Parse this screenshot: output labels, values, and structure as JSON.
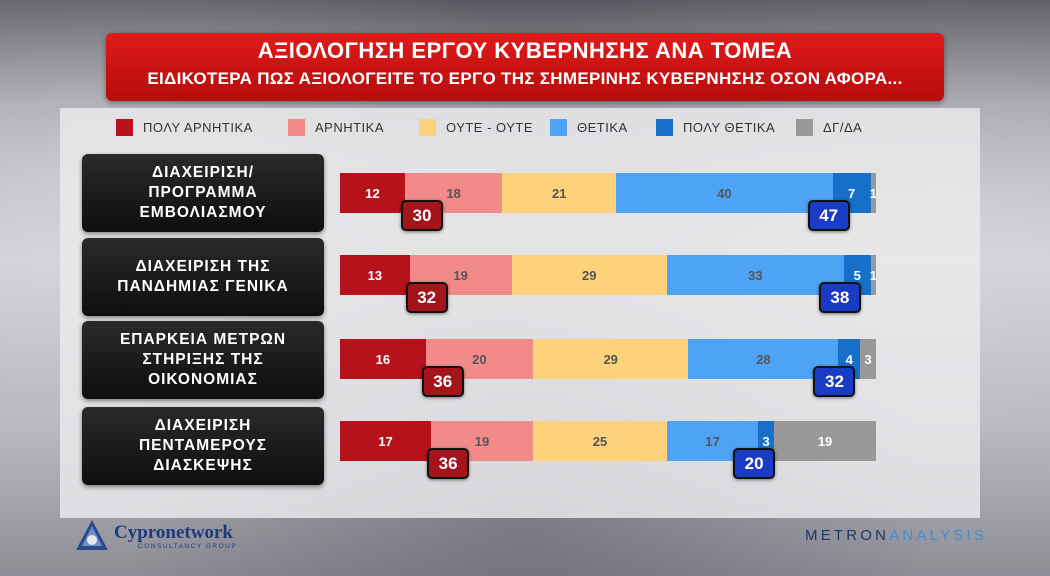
{
  "header": {
    "title": "ΑΞΙΟΛΟΓΗΣΗ ΕΡΓΟΥ ΚΥΒΕΡΝΗΣΗΣ ΑΝΑ ΤΟΜΕΑ",
    "subtitle": "ΕΙΔΙΚΟΤΕΡΑ ΠΩΣ ΑΞΙΟΛΟΓΕΙΤΕ ΤΟ ΕΡΓΟ ΤΗΣ ΣΗΜΕΡΙΝΗΣ ΚΥΒΕΡΝΗΣΗΣ ΟΣΟΝ ΑΦΟΡΑ..."
  },
  "legend": [
    {
      "label": "ΠΟΛΥ ΑΡΝΗΤΙΚΑ",
      "color": "#b5121b"
    },
    {
      "label": "ΑΡΝΗΤΙΚΑ",
      "color": "#f28a8a"
    },
    {
      "label": "ΟΥΤΕ - ΟΥΤΕ",
      "color": "#fdd27a"
    },
    {
      "label": "ΘΕΤΙΚΑ",
      "color": "#4ea3f4"
    },
    {
      "label": "ΠΟΛΥ ΘΕΤΙΚΑ",
      "color": "#1670c9"
    },
    {
      "label": "ΔΓ/ΔΑ",
      "color": "#999999"
    }
  ],
  "chart_data": {
    "type": "bar",
    "orientation": "horizontal-stacked-100",
    "title": "ΑΞΙΟΛΟΓΗΣΗ ΕΡΓΟΥ ΚΥΒΕΡΝΗΣΗΣ ΑΝΑ ΤΟΜΕΑ",
    "subtitle": "ΕΙΔΙΚΟΤΕΡΑ ΠΩΣ ΑΞΙΟΛΟΓΕΙΤΕ ΤΟ ΕΡΓΟ ΤΗΣ ΣΗΜΕΡΙΝΗΣ ΚΥΒΕΡΝΗΣΗΣ ΟΣΟΝ ΑΦΟΡΑ...",
    "categories": [
      "ΔΙΑΧΕΙΡΙΣΗ/\nΠΡΟΓΡΑΜΜΑ\nΕΜΒΟΛΙΑΣΜΟΥ",
      "ΔΙΑΧΕΙΡΙΣΗ ΤΗΣ\nΠΑΝΔΗΜΙΑΣ ΓΕΝΙΚΑ",
      "ΕΠΑΡΚΕΙΑ ΜΕΤΡΩΝ\nΣΤΗΡΙΞΗΣ ΤΗΣ\nΟΙΚΟΝΟΜΙΑΣ",
      "ΔΙΑΧΕΙΡΙΣΗ\nΠΕΝΤΑΜΕΡΟΥΣ\nΔΙΑΣΚΕΨΗΣ"
    ],
    "series": [
      {
        "name": "ΠΟΛΥ ΑΡΝΗΤΙΚΑ",
        "values": [
          12,
          13,
          16,
          17
        ]
      },
      {
        "name": "ΑΡΝΗΤΙΚΑ",
        "values": [
          18,
          19,
          20,
          19
        ]
      },
      {
        "name": "ΟΥΤΕ - ΟΥΤΕ",
        "values": [
          21,
          29,
          29,
          25
        ]
      },
      {
        "name": "ΘΕΤΙΚΑ",
        "values": [
          40,
          33,
          28,
          17
        ]
      },
      {
        "name": "ΠΟΛΥ ΘΕΤΙΚΑ",
        "values": [
          7,
          5,
          4,
          3
        ]
      },
      {
        "name": "ΔΓ/ΔΑ",
        "values": [
          1,
          1,
          3,
          19
        ]
      }
    ],
    "negative_totals": [
      30,
      32,
      36,
      36
    ],
    "positive_totals": [
      47,
      38,
      32,
      20
    ]
  },
  "logos": {
    "left_brand": "Cypronetwork",
    "left_sub": "CONSULTANCY GROUP",
    "right_part1": "METRON",
    "right_part2": "ANALYSIS"
  }
}
